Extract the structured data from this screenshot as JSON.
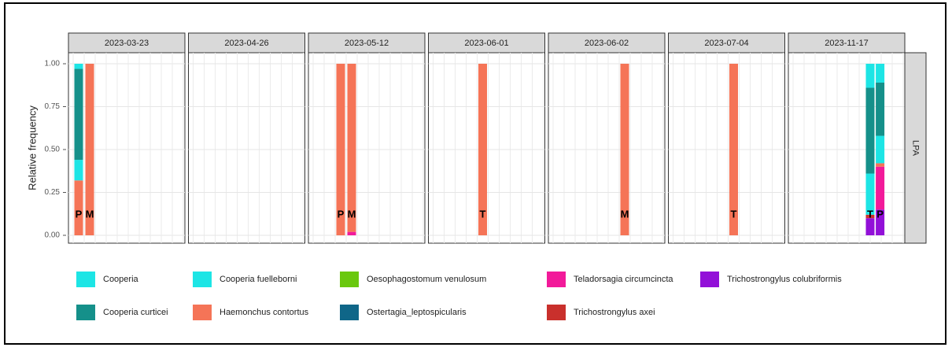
{
  "chart_data": {
    "type": "stacked_bar",
    "ylabel": "Relative frequency",
    "panel_label": "LPA",
    "ylim": [
      0,
      1.05
    ],
    "yticks": [
      {
        "value": 0,
        "label": "0.00"
      },
      {
        "value": 0.25,
        "label": "0.25"
      },
      {
        "value": 0.5,
        "label": "0.50"
      },
      {
        "value": 0.75,
        "label": "0.75"
      },
      {
        "value": 1,
        "label": "1.00"
      }
    ],
    "grid": true,
    "series": [
      {
        "name": "Cooperia",
        "color": "#1de5e5"
      },
      {
        "name": "Cooperia curticei",
        "color": "#15908a"
      },
      {
        "name": "Cooperia fuelleborni",
        "color": "#1de5e5"
      },
      {
        "name": "Haemonchus contortus",
        "color": "#f57457"
      },
      {
        "name": "Oesophagostomum venulosum",
        "color": "#6ac80e"
      },
      {
        "name": "Ostertagia_leptospicularis",
        "color": "#0f6688"
      },
      {
        "name": "Teladorsagia circumcincta",
        "color": "#f21a9a"
      },
      {
        "name": "Trichostrongylus axei",
        "color": "#c9302c"
      },
      {
        "name": "Trichostrongylus colubriformis",
        "color": "#9210d8"
      }
    ],
    "facets": [
      {
        "title": "2023-03-23",
        "categories": [
          "P",
          "M"
        ],
        "values": [
          [
            0.03,
            0
          ],
          [
            0.53,
            0
          ],
          [
            0.12,
            0
          ],
          [
            0.32,
            1
          ],
          [
            0,
            0
          ],
          [
            0,
            0
          ],
          [
            0,
            0
          ],
          [
            0,
            0
          ],
          [
            0,
            0
          ]
        ]
      },
      {
        "title": "2023-04-26",
        "categories": [],
        "values": [
          [],
          [],
          [],
          [],
          [],
          [],
          [],
          [],
          []
        ]
      },
      {
        "title": "2023-05-12",
        "categories": [
          "P",
          "M"
        ],
        "values": [
          [
            0,
            0
          ],
          [
            0,
            0
          ],
          [
            0,
            0
          ],
          [
            1,
            0.98
          ],
          [
            0,
            0
          ],
          [
            0,
            0
          ],
          [
            0,
            0.02
          ],
          [
            0,
            0
          ],
          [
            0,
            0
          ]
        ]
      },
      {
        "title": "2023-06-01",
        "categories": [
          "T"
        ],
        "values": [
          [
            0
          ],
          [
            0
          ],
          [
            0
          ],
          [
            1
          ],
          [
            0
          ],
          [
            0
          ],
          [
            0
          ],
          [
            0
          ],
          [
            0
          ]
        ]
      },
      {
        "title": "2023-06-02",
        "categories": [
          "M"
        ],
        "values": [
          [
            0
          ],
          [
            0
          ],
          [
            0
          ],
          [
            1
          ],
          [
            0
          ],
          [
            0
          ],
          [
            0
          ],
          [
            0
          ],
          [
            0
          ]
        ]
      },
      {
        "title": "2023-07-04",
        "categories": [
          "T"
        ],
        "values": [
          [
            0
          ],
          [
            0
          ],
          [
            0
          ],
          [
            1
          ],
          [
            0
          ],
          [
            0
          ],
          [
            0
          ],
          [
            0
          ],
          [
            0
          ]
        ]
      },
      {
        "title": "2023-11-17",
        "categories": [
          "T",
          "P"
        ],
        "values": [
          [
            0.14,
            0.11
          ],
          [
            0.5,
            0.31
          ],
          [
            0.24,
            0.16
          ],
          [
            0,
            0.02
          ],
          [
            0,
            0
          ],
          [
            0,
            0
          ],
          [
            0,
            0.25
          ],
          [
            0.02,
            0
          ],
          [
            0.1,
            0.15
          ]
        ]
      }
    ]
  }
}
